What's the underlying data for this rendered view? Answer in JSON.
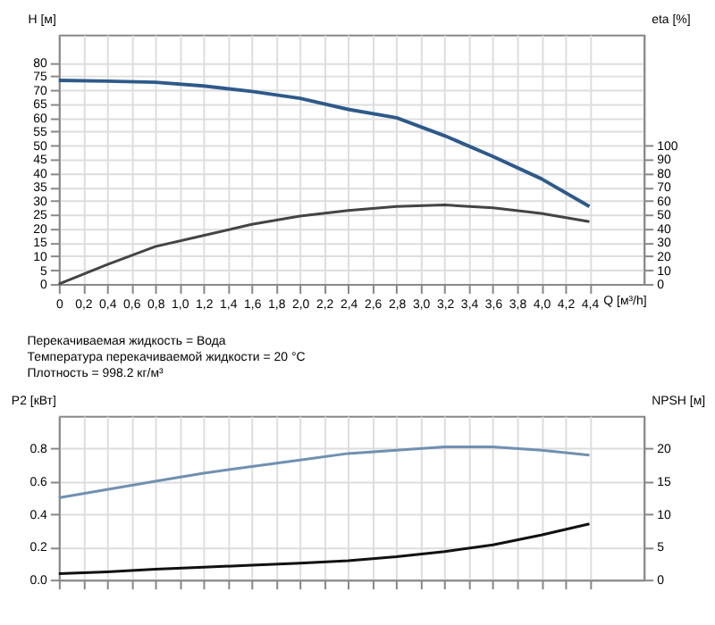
{
  "chart_data": [
    {
      "type": "line",
      "xlabel": "Q [м³/h]",
      "ylabel": "H [м]",
      "y2label": "eta [%]",
      "xlim": [
        0,
        4.85
      ],
      "xticks": [
        0,
        {
          "value": 0.2,
          "label": "0,2"
        },
        {
          "value": 0.4,
          "label": "0,4"
        },
        {
          "value": 0.6,
          "label": "0,6"
        },
        {
          "value": 0.8,
          "label": "0,8"
        },
        {
          "value": 1.0,
          "label": "1,0"
        },
        {
          "value": 1.2,
          "label": "1,2"
        },
        {
          "value": 1.4,
          "label": "1,4"
        },
        {
          "value": 1.6,
          "label": "1,6"
        },
        {
          "value": 1.8,
          "label": "1,8"
        },
        {
          "value": 2.0,
          "label": "2,0"
        },
        {
          "value": 2.2,
          "label": "2,2"
        },
        {
          "value": 2.4,
          "label": "2,4"
        },
        {
          "value": 2.6,
          "label": "2,6"
        },
        {
          "value": 2.8,
          "label": "2,8"
        },
        {
          "value": 3.0,
          "label": "3,0"
        },
        {
          "value": 3.2,
          "label": "3,2"
        },
        {
          "value": 3.4,
          "label": "3,4"
        },
        {
          "value": 3.6,
          "label": "3,6"
        },
        {
          "value": 3.8,
          "label": "3,8"
        },
        {
          "value": 4.0,
          "label": "4,0"
        },
        {
          "value": 4.2,
          "label": "4,2"
        },
        {
          "value": 4.4,
          "label": "4,4"
        }
      ],
      "ylim": [
        0,
        90
      ],
      "yticks": [
        0,
        5,
        10,
        15,
        20,
        25,
        30,
        35,
        40,
        45,
        50,
        55,
        60,
        65,
        70,
        75,
        80
      ],
      "y2lim": [
        0,
        180
      ],
      "y2ticks": [
        0,
        10,
        20,
        30,
        40,
        50,
        60,
        70,
        80,
        90,
        100
      ],
      "x": [
        0,
        0.4,
        0.8,
        1.2,
        1.6,
        2.0,
        2.4,
        2.8,
        3.2,
        3.6,
        4.0,
        4.4
      ],
      "series": [
        {
          "color": "#2e5a8a",
          "values": [
            73.5,
            73.2,
            72.8,
            71.5,
            69.5,
            67,
            63,
            60,
            53.5,
            46,
            38,
            28
          ]
        },
        {
          "color": "#444444",
          "axis": "y2",
          "values": [
            0,
            14,
            27,
            35,
            43,
            49,
            53,
            56,
            57,
            55,
            51,
            45
          ]
        }
      ],
      "grid": true,
      "legend": false,
      "annotations": [
        "Перекачиваемая жидкость = Вода",
        "Температура перекачиваемой жидкости = 20 °C",
        "Плотность = 998.2 кг/м³"
      ]
    },
    {
      "type": "line",
      "ylabel": "P2 [кВт]",
      "y2label": "NPSH [м]",
      "xlim": [
        0,
        4.85
      ],
      "xticks": [
        0,
        0.2,
        0.4,
        0.6,
        0.8,
        1.0,
        1.2,
        1.4,
        1.6,
        1.8,
        2.0,
        2.2,
        2.4,
        2.6,
        2.8,
        3.0,
        3.2,
        3.4,
        3.6,
        3.8,
        4.0,
        4.2,
        4.4
      ],
      "ylim": [
        0,
        1.0
      ],
      "yticks": [
        {
          "value": 0,
          "label": "0.0"
        },
        0.2,
        0.4,
        0.6,
        0.8
      ],
      "y2lim": [
        0,
        25
      ],
      "y2ticks": [
        0,
        5,
        10,
        15,
        20
      ],
      "x": [
        0,
        0.4,
        0.8,
        1.2,
        1.6,
        2.0,
        2.4,
        2.8,
        3.2,
        3.6,
        4.0,
        4.4
      ],
      "series": [
        {
          "color": "#7090b0",
          "values": [
            0.5,
            0.55,
            0.6,
            0.65,
            0.69,
            0.73,
            0.77,
            0.79,
            0.81,
            0.81,
            0.79,
            0.76
          ]
        },
        {
          "color": "#111111",
          "axis": "y2",
          "values": [
            0.9,
            1.2,
            1.6,
            1.9,
            2.2,
            2.5,
            2.9,
            3.5,
            4.3,
            5.3,
            6.8,
            8.5
          ]
        }
      ],
      "grid": true,
      "legend": false,
      "tick_labels": "y"
    }
  ]
}
